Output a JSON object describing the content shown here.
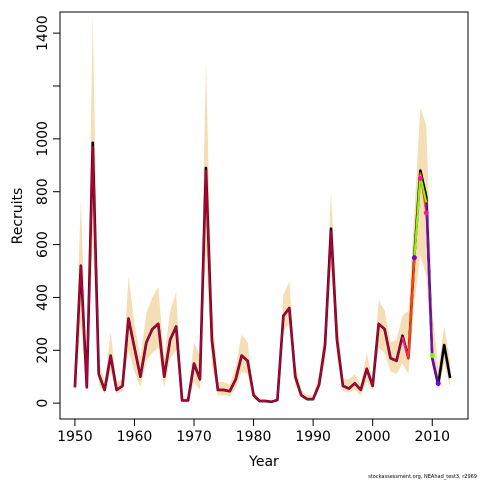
{
  "chart_data": {
    "type": "line",
    "xlabel": "Year",
    "ylabel": "Recruits",
    "xlim": [
      1947.5,
      2016
    ],
    "ylim": [
      -60,
      1480
    ],
    "x_ticks": [
      1950,
      1960,
      1970,
      1980,
      1990,
      2000,
      2010
    ],
    "y_ticks": [
      0,
      200,
      400,
      600,
      800,
      1000,
      1200,
      1400
    ],
    "y_tick_labels": [
      "0",
      "200",
      "400",
      "600",
      "800",
      "1000",
      "",
      "1400"
    ],
    "footnote": "stockassessment.org, NEAhad_test3, r2969",
    "colors": {
      "band": "#f5deb3",
      "estimate": "#000000",
      "retro": "#b0003a",
      "retro_highlight": "#ff1493",
      "retro_green": "#7cfc00",
      "retro_purple": "#7b00c8"
    },
    "band": {
      "x": [
        1950,
        1951,
        1952,
        1953,
        1954,
        1955,
        1956,
        1957,
        1958,
        1959,
        1960,
        1961,
        1962,
        1963,
        1964,
        1965,
        1966,
        1967,
        1968,
        1969,
        1970,
        1971,
        1972,
        1973,
        1974,
        1975,
        1976,
        1977,
        1978,
        1979,
        1980,
        1981,
        1982,
        1983,
        1984,
        1985,
        1986,
        1987,
        1988,
        1989,
        1990,
        1991,
        1992,
        1993,
        1994,
        1995,
        1996,
        1997,
        1998,
        1999,
        2000,
        2001,
        2002,
        2003,
        2004,
        2005,
        2006,
        2007,
        2008,
        2009,
        2010,
        2011,
        2012,
        2013
      ],
      "lower": [
        40,
        300,
        40,
        620,
        70,
        35,
        120,
        35,
        45,
        200,
        120,
        60,
        160,
        190,
        210,
        60,
        170,
        200,
        8,
        8,
        80,
        50,
        580,
        140,
        30,
        30,
        25,
        55,
        120,
        110,
        15,
        5,
        5,
        3,
        8,
        270,
        300,
        70,
        20,
        10,
        10,
        50,
        160,
        520,
        170,
        45,
        40,
        50,
        30,
        80,
        50,
        210,
        190,
        120,
        110,
        150,
        110,
        380,
        560,
        480,
        140,
        50,
        150,
        60
      ],
      "upper": [
        90,
        770,
        90,
        1470,
        160,
        80,
        270,
        80,
        90,
        480,
        300,
        170,
        340,
        400,
        440,
        170,
        350,
        420,
        20,
        20,
        230,
        180,
        1290,
        370,
        80,
        80,
        70,
        140,
        260,
        230,
        50,
        15,
        15,
        8,
        20,
        410,
        460,
        150,
        50,
        30,
        30,
        110,
        280,
        800,
        340,
        90,
        90,
        110,
        70,
        190,
        80,
        390,
        350,
        230,
        240,
        330,
        350,
        720,
        1120,
        1050,
        360,
        130,
        290,
        160
      ]
    },
    "series": [
      {
        "name": "",
        "color": "#000000",
        "x": [
          1950,
          1951,
          1952,
          1953,
          1954,
          1955,
          1956,
          1957,
          1958,
          1959,
          1960,
          1961,
          1962,
          1963,
          1964,
          1965,
          1966,
          1967,
          1968,
          1969,
          1970,
          1971,
          1972,
          1973,
          1974,
          1975,
          1976,
          1977,
          1978,
          1979,
          1980,
          1981,
          1982,
          1983,
          1984,
          1985,
          1986,
          1987,
          1988,
          1989,
          1990,
          1991,
          1992,
          1993,
          1994,
          1995,
          1996,
          1997,
          1998,
          1999,
          2000,
          2001,
          2002,
          2003,
          2004,
          2005,
          2006,
          2007,
          2008,
          2009,
          2010,
          2011,
          2012,
          2013
        ],
        "values": [
          60,
          520,
          60,
          985,
          110,
          50,
          180,
          50,
          65,
          320,
          210,
          100,
          230,
          280,
          300,
          100,
          240,
          290,
          10,
          10,
          150,
          90,
          890,
          240,
          50,
          50,
          45,
          90,
          180,
          160,
          30,
          8,
          8,
          5,
          12,
          330,
          360,
          100,
          30,
          15,
          15,
          70,
          220,
          660,
          240,
          65,
          55,
          75,
          50,
          130,
          65,
          300,
          280,
          170,
          160,
          255,
          170,
          560,
          880,
          780,
          170,
          70,
          220,
          95
        ]
      },
      {
        "name": "",
        "color": "#b0003a",
        "x": [
          1950,
          1951,
          1952,
          1953,
          1954,
          1955,
          1956,
          1957,
          1958,
          1959,
          1960,
          1961,
          1962,
          1963,
          1964,
          1965,
          1966,
          1967,
          1968,
          1969,
          1970,
          1971,
          1972,
          1973,
          1974,
          1975,
          1976,
          1977,
          1978,
          1979,
          1980,
          1981,
          1982,
          1983,
          1984,
          1985,
          1986,
          1987,
          1988,
          1989,
          1990,
          1991,
          1992,
          1993,
          1994,
          1995,
          1996,
          1997,
          1998,
          1999,
          2000,
          2001,
          2002,
          2003,
          2004,
          2005,
          2006,
          2007
        ],
        "values": [
          60,
          520,
          60,
          970,
          110,
          50,
          180,
          50,
          65,
          320,
          210,
          100,
          230,
          280,
          300,
          100,
          240,
          290,
          10,
          10,
          150,
          90,
          880,
          240,
          50,
          50,
          45,
          90,
          180,
          160,
          30,
          8,
          8,
          5,
          12,
          330,
          360,
          100,
          30,
          15,
          15,
          70,
          220,
          650,
          240,
          65,
          55,
          75,
          50,
          130,
          65,
          300,
          280,
          170,
          160,
          250,
          170,
          550
        ]
      },
      {
        "name": "",
        "color": "#ff1493",
        "x": [
          2005,
          2006,
          2007,
          2008
        ],
        "values": [
          250,
          170,
          550,
          850
        ]
      },
      {
        "name": "",
        "color": "#ff4500",
        "x": [
          2006,
          2007,
          2008,
          2009
        ],
        "values": [
          170,
          550,
          870,
          720
        ]
      },
      {
        "name": "",
        "color": "#7cfc00",
        "x": [
          2007,
          2008,
          2009,
          2010
        ],
        "values": [
          550,
          860,
          760,
          180
        ]
      },
      {
        "name": "",
        "color": "#7b00c8",
        "x": [
          2009,
          2010,
          2011
        ],
        "values": [
          760,
          170,
          75
        ]
      }
    ],
    "endpoints": [
      {
        "x": 2007,
        "y": 550,
        "color": "#7b00c8"
      },
      {
        "x": 2008,
        "y": 850,
        "color": "#ff1493"
      },
      {
        "x": 2009,
        "y": 720,
        "color": "#ff1493"
      },
      {
        "x": 2010,
        "y": 180,
        "color": "#7cfc00"
      },
      {
        "x": 2011,
        "y": 75,
        "color": "#7b00c8"
      }
    ]
  }
}
